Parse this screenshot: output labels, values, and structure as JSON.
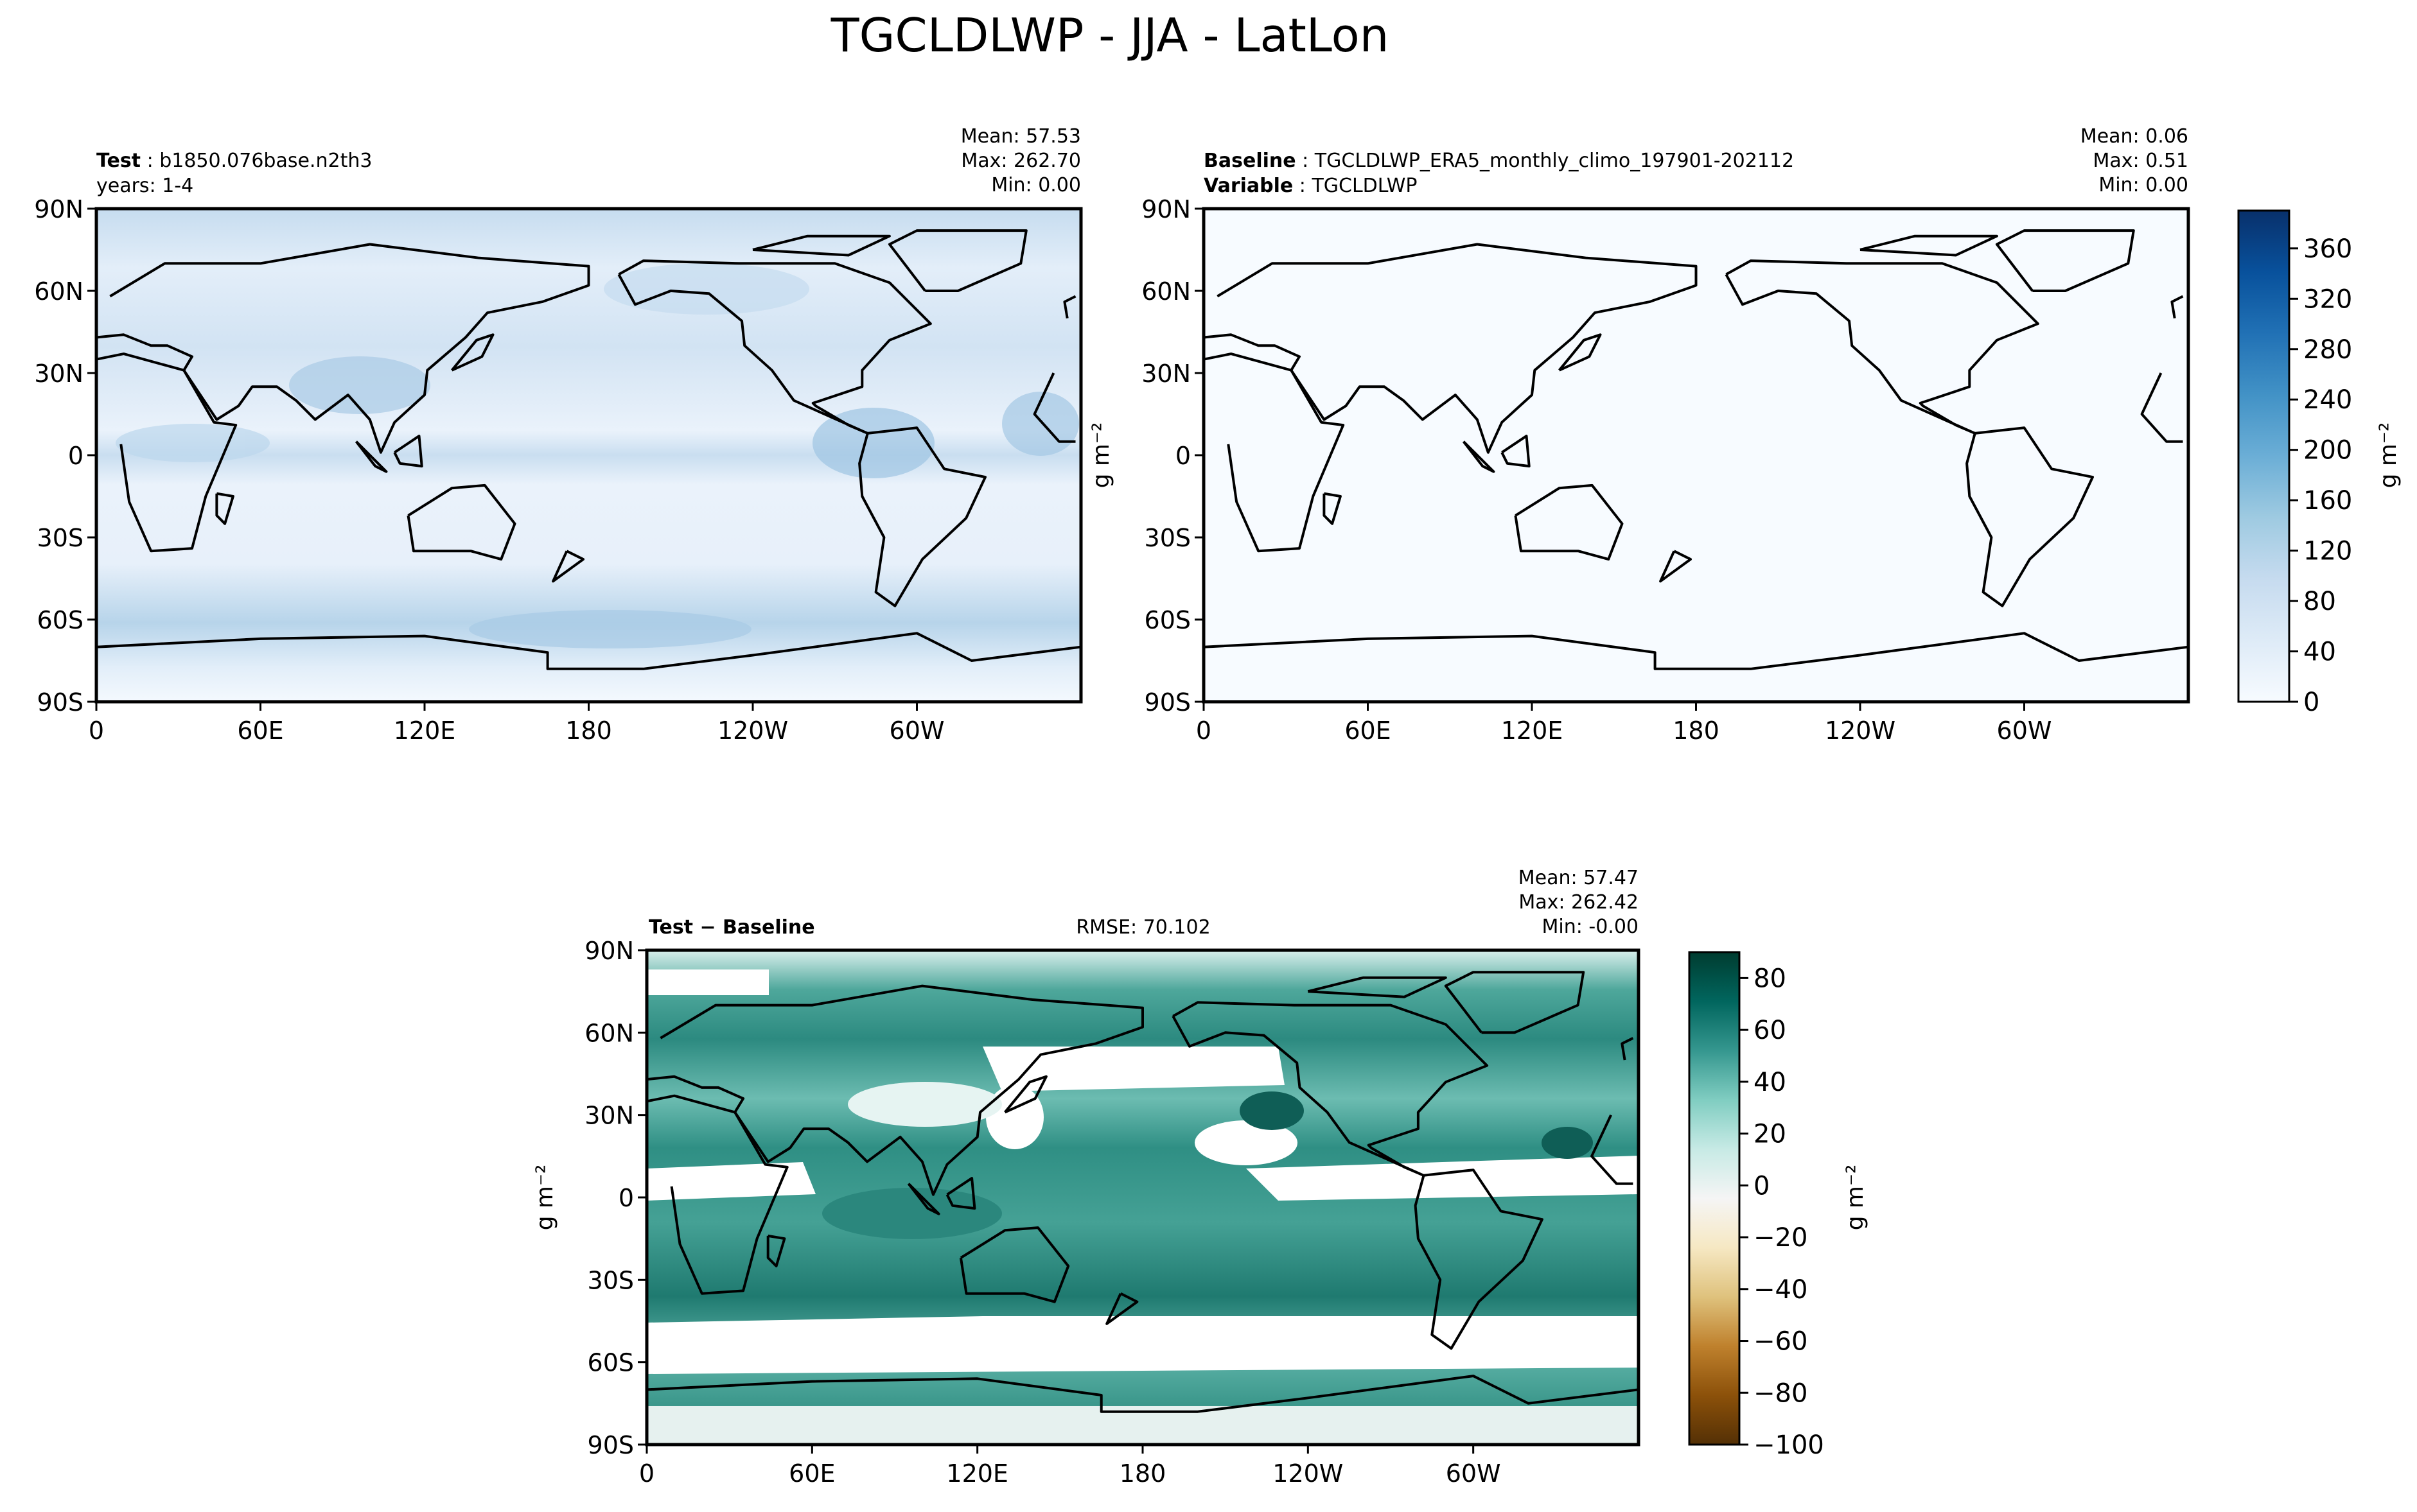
{
  "figure": {
    "title": "TGCLDLWP - JJA - LatLon"
  },
  "chart_data": [
    {
      "type": "heatmap",
      "panel": "test",
      "map": "global lat-lon with coastlines",
      "header_left_bold_1": "Test",
      "header_left_text_1": "b1850.076base.n2th3",
      "header_left_line_2": "years: 1-4",
      "stats": [
        {
          "label": "Mean:",
          "value": "57.53"
        },
        {
          "label": "Max:",
          "value": "262.70"
        },
        {
          "label": "Min:",
          "value": "0.00"
        }
      ],
      "yticks": [
        "90N",
        "60N",
        "30N",
        "0",
        "30S",
        "60S",
        "90S"
      ],
      "xticks": [
        "0",
        "60E",
        "120E",
        "180",
        "120W",
        "60W"
      ],
      "colormap": "Blues",
      "value_range": [
        0.0,
        262.7
      ]
    },
    {
      "type": "heatmap",
      "panel": "baseline",
      "map": "global lat-lon with coastlines",
      "header_left_bold_1": "Baseline",
      "header_left_text_1": "TGCLDLWP_ERA5_monthly_climo_197901-202112",
      "header_left_bold_2": "Variable",
      "header_left_text_2": "TGCLDLWP",
      "stats": [
        {
          "label": "Mean:",
          "value": "0.06"
        },
        {
          "label": "Max:",
          "value": "0.51"
        },
        {
          "label": "Min:",
          "value": "0.00"
        }
      ],
      "ylabel": "g m⁻²",
      "yticks": [
        "90N",
        "60N",
        "30N",
        "0",
        "30S",
        "60S",
        "90S"
      ],
      "xticks": [
        "0",
        "60E",
        "120E",
        "180",
        "120W",
        "60W"
      ],
      "colormap": "Blues",
      "value_range": [
        0.0,
        0.51
      ],
      "colorbar": {
        "ticks": [
          "360",
          "320",
          "280",
          "240",
          "200",
          "160",
          "120",
          "80",
          "40",
          "0"
        ],
        "range": [
          0,
          390
        ],
        "label": "g m⁻²",
        "colors_low_to_high": [
          "#f7fbff",
          "#deebf7",
          "#c6dbef",
          "#9ecae1",
          "#6baed6",
          "#4292c6",
          "#2171b5",
          "#08519c",
          "#08306b"
        ]
      }
    },
    {
      "type": "heatmap",
      "panel": "difference",
      "map": "global lat-lon with coastlines",
      "header_left_bold": "Test − Baseline",
      "header_center": "RMSE: 70.102",
      "stats": [
        {
          "label": "Mean:",
          "value": "57.47"
        },
        {
          "label": "Max:",
          "value": "262.42"
        },
        {
          "label": "Min:",
          "value": "-0.00"
        }
      ],
      "ylabel": "g m⁻²",
      "yticks": [
        "90N",
        "60N",
        "30N",
        "0",
        "30S",
        "60S",
        "90S"
      ],
      "xticks": [
        "0",
        "60E",
        "120E",
        "180",
        "120W",
        "60W"
      ],
      "colormap": "BrBG",
      "colorbar": {
        "ticks": [
          "80",
          "60",
          "40",
          "20",
          "0",
          "−20",
          "−40",
          "−60",
          "−80",
          "−100"
        ],
        "range": [
          -100,
          90
        ],
        "label": "g m⁻²",
        "colors_low_to_high": [
          "#543005",
          "#8c510a",
          "#bf812d",
          "#dfc27d",
          "#f6e8c3",
          "#f5f5f5",
          "#c7eae5",
          "#80cdc1",
          "#35978f",
          "#01665e",
          "#003c30"
        ]
      }
    }
  ]
}
